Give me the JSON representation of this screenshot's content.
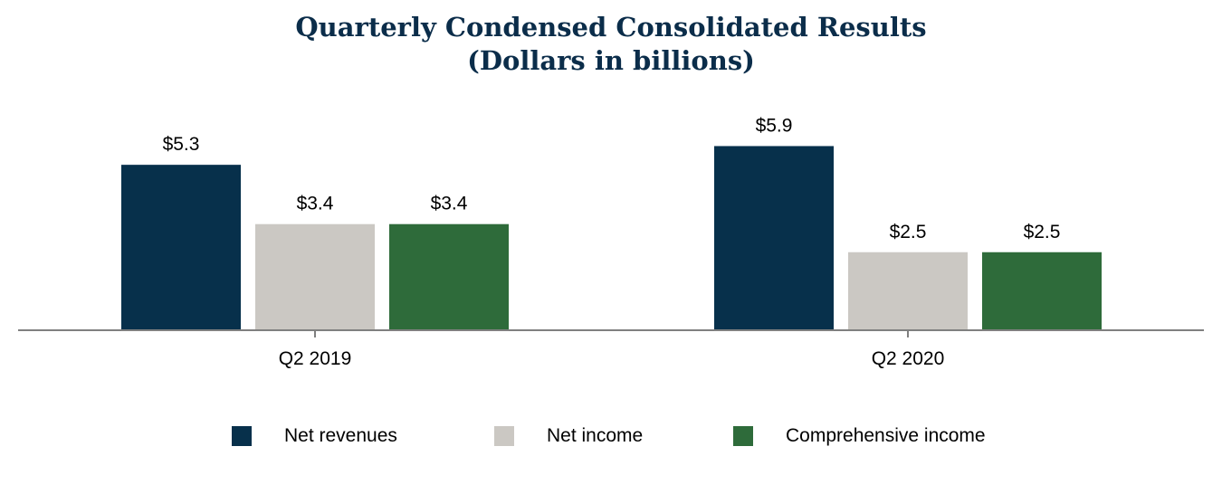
{
  "title_line1": "Quarterly Condensed Consolidated Results",
  "title_line2": "(Dollars in billions)",
  "colors": {
    "net_revenues": "#07304b",
    "net_income": "#cbc8c3",
    "comprehensive_income": "#2e6b3a",
    "axis": "#808080",
    "title": "#0b2d4a"
  },
  "chart_data": {
    "type": "bar",
    "title": "Quarterly Condensed Consolidated Results (Dollars in billions)",
    "categories": [
      "Q2 2019",
      "Q2 2020"
    ],
    "series": [
      {
        "name": "Net revenues",
        "values": [
          5.3,
          5.9
        ],
        "labels": [
          "$5.3",
          "$5.9"
        ],
        "color": "#07304b"
      },
      {
        "name": "Net income",
        "values": [
          3.4,
          2.5
        ],
        "labels": [
          "$3.4",
          "$2.5"
        ],
        "color": "#cbc8c3"
      },
      {
        "name": "Comprehensive income",
        "values": [
          3.4,
          2.5
        ],
        "labels": [
          "$3.4",
          "$2.5"
        ],
        "color": "#2e6b3a"
      }
    ],
    "xlabel": "",
    "ylabel": "",
    "ylim": [
      0,
      6.5
    ],
    "grid": false,
    "legend_position": "bottom"
  }
}
